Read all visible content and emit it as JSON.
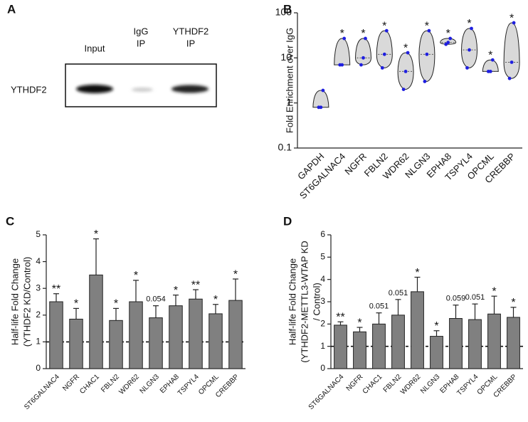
{
  "blot": {
    "label": "A",
    "lanes": [
      [
        "Input"
      ],
      [
        "IgG",
        "IP"
      ],
      [
        "YTHDF2",
        "IP"
      ]
    ],
    "row_label": "YTHDF2"
  },
  "chart_data": [
    {
      "type": "violin",
      "label": "B",
      "ylabel": [
        "Fold Enrichment over IgG"
      ],
      "log_scale": true,
      "ylim": [
        0.1,
        100
      ],
      "yticks": [
        0.1,
        1,
        10,
        100
      ],
      "color": "#d9d9d9",
      "point_color": "#1f1fe0",
      "categories": [
        "GAPDH",
        "ST6GALNAC4",
        "NGFR",
        "FBLN2",
        "WDR62",
        "NLGN3",
        "EPHA8",
        "TSPYL4",
        "OPCML",
        "CREBBP"
      ],
      "values": [
        [
          0.8,
          0.8,
          1.9
        ],
        [
          7,
          7,
          27
        ],
        [
          7,
          10,
          27
        ],
        [
          6,
          12,
          40
        ],
        [
          2,
          5,
          13
        ],
        [
          3,
          12,
          40
        ],
        [
          20,
          22,
          27
        ],
        [
          6,
          15,
          45
        ],
        [
          5,
          5,
          9
        ],
        [
          3.5,
          8,
          60
        ]
      ],
      "annotations": [
        null,
        "*",
        "*",
        "*",
        "*",
        "*",
        "*",
        "*",
        "*",
        "*"
      ]
    },
    {
      "type": "bar",
      "label": "C",
      "ylabel": [
        "Half-life Fold Change",
        "(YTHDF2 KD/Control)"
      ],
      "ylim": [
        0,
        5
      ],
      "yticks": [
        0,
        1,
        2,
        3,
        4,
        5
      ],
      "color": "#808080",
      "reference_line": 1,
      "categories": [
        "ST6GALNAC4",
        "NGFR",
        "CHAC1",
        "FBLN2",
        "WDR62",
        "NLGN3",
        "EPHA8",
        "TSPYL4",
        "OPCML",
        "CREBBP"
      ],
      "values": [
        2.5,
        1.85,
        3.5,
        1.8,
        2.5,
        1.9,
        2.35,
        2.6,
        2.05,
        2.55
      ],
      "errors": [
        0.3,
        0.4,
        1.35,
        0.45,
        0.8,
        0.45,
        0.4,
        0.35,
        0.35,
        0.8
      ],
      "annotations": [
        "**",
        "*",
        "*",
        "*",
        "*",
        "0.054",
        "*",
        "**",
        "*",
        "*"
      ]
    },
    {
      "type": "bar",
      "label": "D",
      "ylabel": [
        "Half-life Fold Change",
        "(YTHDF2-METTL3-WTAP KD",
        "/ Control)"
      ],
      "ylim": [
        0,
        6
      ],
      "yticks": [
        0,
        1,
        2,
        3,
        4,
        5,
        6
      ],
      "color": "#808080",
      "reference_line": 1,
      "categories": [
        "ST6GALNAC4",
        "NGFR",
        "CHAC1",
        "FBLN2",
        "WDR62",
        "NLGN3",
        "EPHA8",
        "TSPYL4",
        "OPCML",
        "CREBBP"
      ],
      "values": [
        1.95,
        1.65,
        2.0,
        2.4,
        3.45,
        1.45,
        2.25,
        2.2,
        2.45,
        2.3
      ],
      "errors": [
        0.15,
        0.2,
        0.5,
        0.7,
        0.65,
        0.25,
        0.6,
        0.7,
        0.8,
        0.45
      ],
      "annotations": [
        "**",
        "*",
        "0.051",
        "0.051",
        "*",
        "*",
        "0.059",
        "0.051",
        "*",
        "*"
      ]
    }
  ]
}
